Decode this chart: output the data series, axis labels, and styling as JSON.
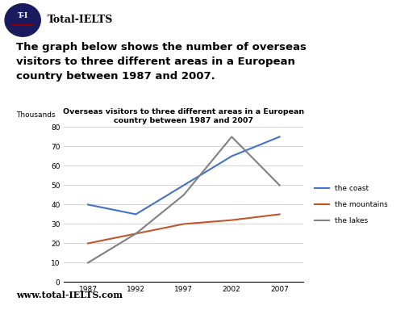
{
  "title_line1": "Overseas visitors to three different areas in a European",
  "title_line2": "country between 1987 and 2007",
  "ylabel": "Thousands",
  "years": [
    1987,
    1992,
    1997,
    2002,
    2007
  ],
  "coast": [
    40,
    35,
    50,
    65,
    75
  ],
  "mountains": [
    20,
    25,
    30,
    32,
    35
  ],
  "lakes": [
    10,
    25,
    45,
    75,
    50
  ],
  "coast_color": "#4472C4",
  "mountains_color": "#C0562A",
  "lakes_color": "#808080",
  "ylim": [
    0,
    80
  ],
  "yticks": [
    0,
    10,
    20,
    30,
    40,
    50,
    60,
    70,
    80
  ],
  "legend_labels": [
    "the coast",
    "the mountains",
    "the lakes"
  ],
  "header_line1": "The graph below shows the number of overseas",
  "header_line2": "visitors to three different areas in a European",
  "header_line3": "country between 1987 and 2007.",
  "logo_text": "T-I",
  "logo_subtext": "Total-IELTS",
  "footer_text": "www.total-IELTS.com",
  "logo_bg_color": "#1a1a5e",
  "logo_text_color": "#ffffff",
  "bg_color": "#ffffff",
  "grid_color": "#cccccc",
  "underline_color": "#8b0000"
}
